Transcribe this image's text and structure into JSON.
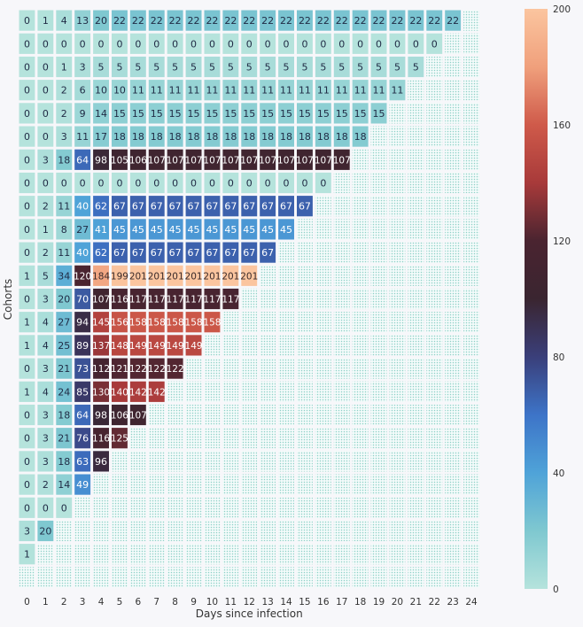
{
  "chart_data": {
    "type": "heatmap",
    "xlabel": "Days since infection",
    "ylabel": "Cohorts",
    "x_ticks": [
      "0",
      "1",
      "2",
      "3",
      "4",
      "5",
      "6",
      "7",
      "8",
      "9",
      "10",
      "11",
      "12",
      "13",
      "14",
      "15",
      "16",
      "17",
      "18",
      "19",
      "20",
      "21",
      "22",
      "23",
      "24"
    ],
    "colorbar": {
      "min": 0,
      "max": 200,
      "ticks": [
        "0",
        "40",
        "80",
        "120",
        "160",
        "200"
      ]
    },
    "colormap": [
      "#b5e3dc",
      "#7fc8d0",
      "#4fa3d8",
      "#3d74c8",
      "#3a3f7a",
      "#3a2530",
      "#4a2430",
      "#a83a3a",
      "#cf5a4a",
      "#f0a07c",
      "#fbc59f"
    ],
    "empty_cell_color": "#bde6e1",
    "rows": [
      [
        0,
        1,
        4,
        13,
        20,
        22,
        22,
        22,
        22,
        22,
        22,
        22,
        22,
        22,
        22,
        22,
        22,
        22,
        22,
        22,
        22,
        22,
        22,
        22
      ],
      [
        0,
        0,
        0,
        0,
        0,
        0,
        0,
        0,
        0,
        0,
        0,
        0,
        0,
        0,
        0,
        0,
        0,
        0,
        0,
        0,
        0,
        0,
        0
      ],
      [
        0,
        0,
        1,
        3,
        5,
        5,
        5,
        5,
        5,
        5,
        5,
        5,
        5,
        5,
        5,
        5,
        5,
        5,
        5,
        5,
        5,
        5
      ],
      [
        0,
        0,
        2,
        6,
        10,
        10,
        11,
        11,
        11,
        11,
        11,
        11,
        11,
        11,
        11,
        11,
        11,
        11,
        11,
        11,
        11
      ],
      [
        0,
        0,
        2,
        9,
        14,
        15,
        15,
        15,
        15,
        15,
        15,
        15,
        15,
        15,
        15,
        15,
        15,
        15,
        15,
        15
      ],
      [
        0,
        0,
        3,
        11,
        17,
        18,
        18,
        18,
        18,
        18,
        18,
        18,
        18,
        18,
        18,
        18,
        18,
        18,
        18
      ],
      [
        0,
        3,
        18,
        64,
        98,
        105,
        106,
        107,
        107,
        107,
        107,
        107,
        107,
        107,
        107,
        107,
        107,
        107
      ],
      [
        0,
        0,
        0,
        0,
        0,
        0,
        0,
        0,
        0,
        0,
        0,
        0,
        0,
        0,
        0,
        0,
        0
      ],
      [
        0,
        2,
        11,
        40,
        62,
        67,
        67,
        67,
        67,
        67,
        67,
        67,
        67,
        67,
        67,
        67
      ],
      [
        0,
        1,
        8,
        27,
        41,
        45,
        45,
        45,
        45,
        45,
        45,
        45,
        45,
        45,
        45
      ],
      [
        0,
        2,
        11,
        40,
        62,
        67,
        67,
        67,
        67,
        67,
        67,
        67,
        67,
        67
      ],
      [
        1,
        5,
        34,
        120,
        184,
        199,
        201,
        201,
        201,
        201,
        201,
        201,
        201
      ],
      [
        0,
        3,
        20,
        70,
        107,
        116,
        117,
        117,
        117,
        117,
        117,
        117
      ],
      [
        1,
        4,
        27,
        94,
        145,
        156,
        158,
        158,
        158,
        158,
        158
      ],
      [
        1,
        4,
        25,
        89,
        137,
        148,
        149,
        149,
        149,
        149
      ],
      [
        0,
        3,
        21,
        73,
        112,
        121,
        122,
        122,
        122
      ],
      [
        1,
        4,
        24,
        85,
        130,
        140,
        142,
        142
      ],
      [
        0,
        3,
        18,
        64,
        98,
        106,
        107
      ],
      [
        0,
        3,
        21,
        76,
        116,
        125
      ],
      [
        0,
        3,
        18,
        63,
        96
      ],
      [
        0,
        2,
        14,
        49
      ],
      [
        0,
        0,
        0
      ],
      [
        3,
        20
      ],
      [
        1
      ],
      []
    ]
  }
}
